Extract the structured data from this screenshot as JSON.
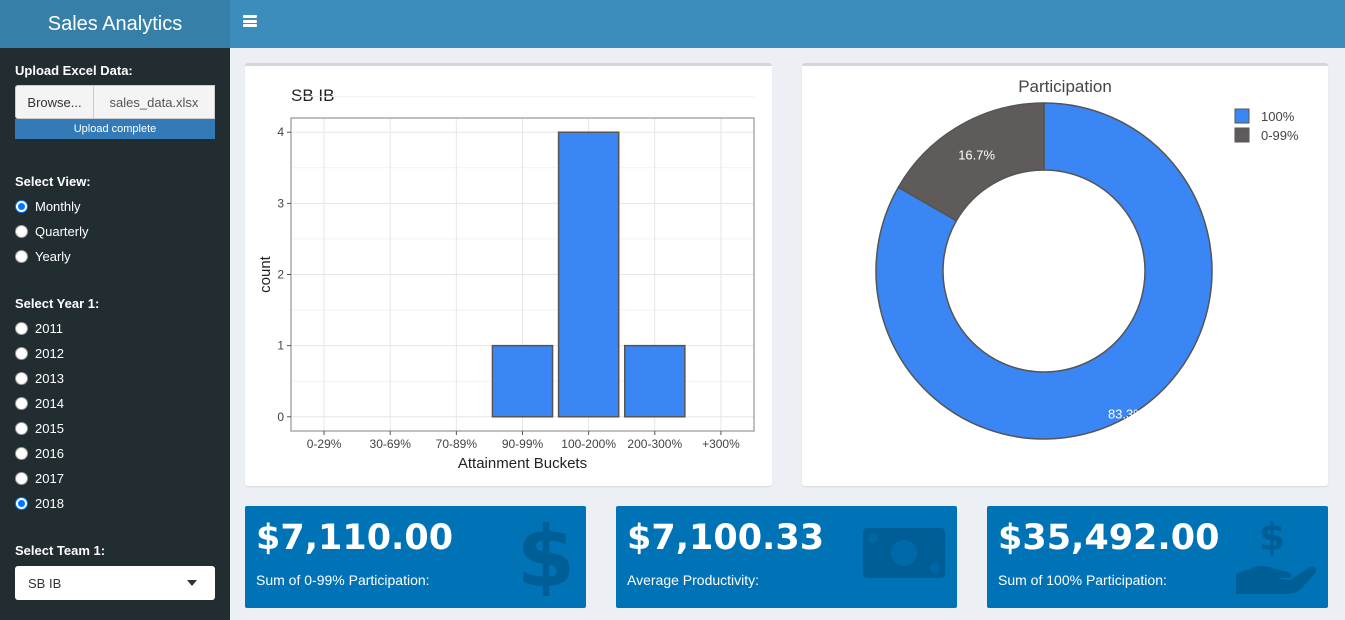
{
  "app": {
    "title": "Sales Analytics"
  },
  "sidebar": {
    "upload_label": "Upload Excel Data:",
    "browse_label": "Browse...",
    "file_name": "sales_data.xlsx",
    "upload_status": "Upload complete",
    "view_label": "Select View:",
    "views": [
      "Monthly",
      "Quarterly",
      "Yearly"
    ],
    "selected_view": "Monthly",
    "year_label": "Select Year 1:",
    "years": [
      "2011",
      "2012",
      "2013",
      "2014",
      "2015",
      "2016",
      "2017",
      "2018"
    ],
    "selected_year": "2018",
    "team_label": "Select Team 1:",
    "team_value": "SB IB"
  },
  "chart_data": [
    {
      "type": "bar",
      "title": "SB IB",
      "xlabel": "Attainment Buckets",
      "ylabel": "count",
      "categories": [
        "0-29%",
        "30-69%",
        "70-89%",
        "90-99%",
        "100-200%",
        "200-300%",
        "+300%"
      ],
      "values": [
        0,
        0,
        0,
        1,
        4,
        1,
        0
      ],
      "yticks": [
        0,
        1,
        2,
        3,
        4
      ],
      "color": "#3a86f5",
      "grid": true
    },
    {
      "type": "pie",
      "title": "Participation",
      "labels": [
        "100%",
        "0-99%"
      ],
      "values": [
        83.3,
        16.7
      ],
      "slice_labels": [
        "83.3%",
        "16.7%"
      ],
      "colors": [
        "#3a86f5",
        "#5f5b5a"
      ],
      "hole": true,
      "legend": "top-right"
    }
  ],
  "value_boxes": [
    {
      "value": "$7,110.00",
      "label": "Sum of 0-99% Participation:",
      "icon": "dollar-sign-icon"
    },
    {
      "value": "$7,100.33",
      "label": "Average Productivity:",
      "icon": "money-bill-icon"
    },
    {
      "value": "$35,492.00",
      "label": "Sum of 100% Participation:",
      "icon": "hand-holding-dollar-icon"
    }
  ],
  "colors": {
    "header": "#3c8dbc",
    "logo_bg": "#367fa9",
    "sidebar": "#222d32",
    "value_box": "#0073b7"
  }
}
